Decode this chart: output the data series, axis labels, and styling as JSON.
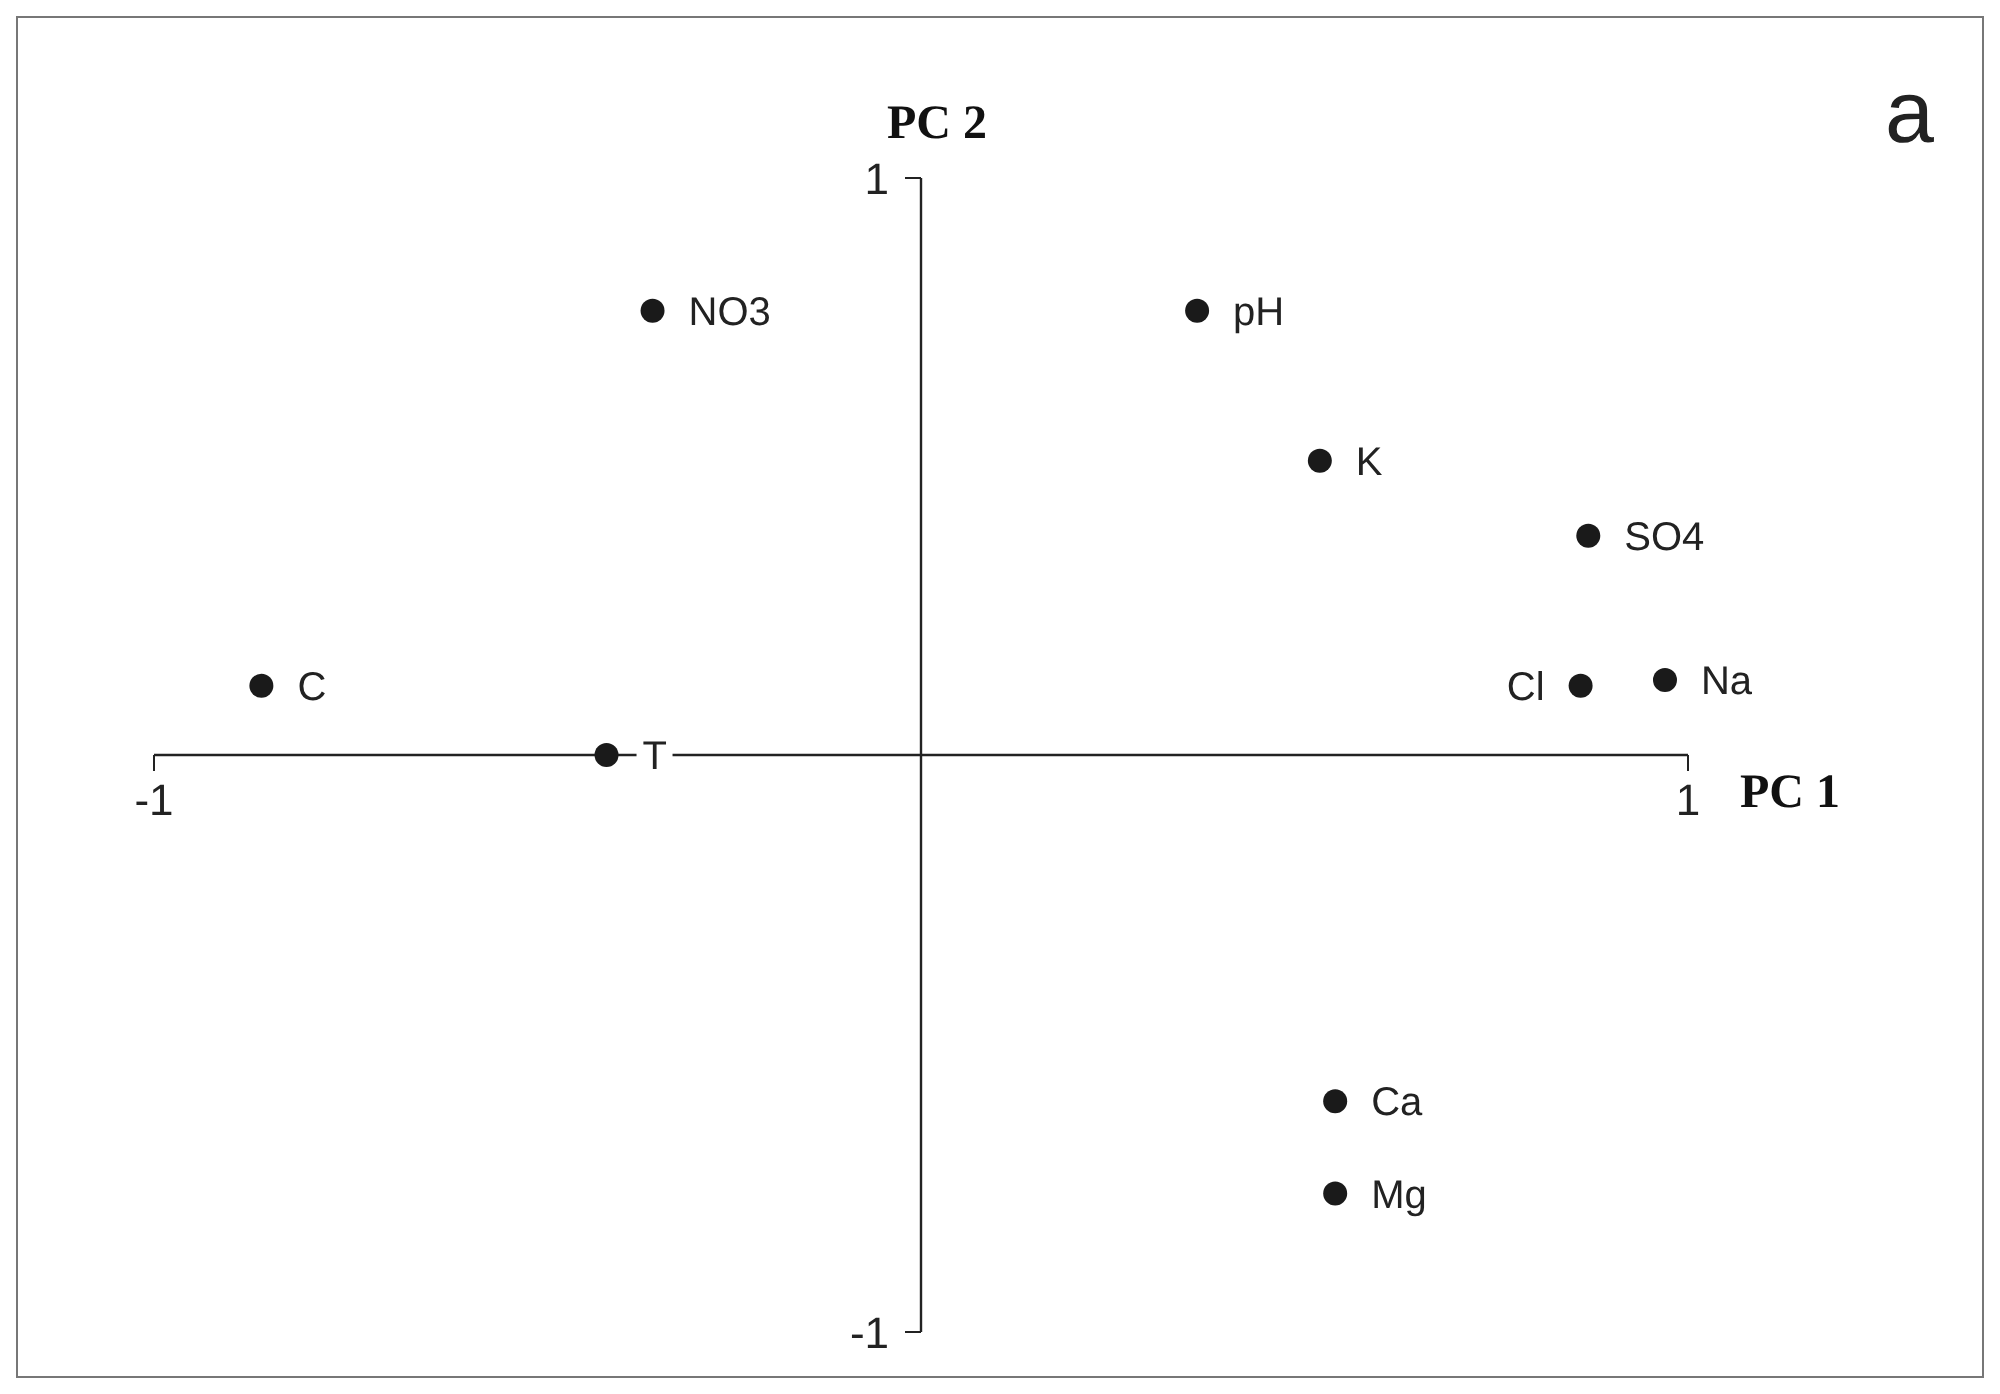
{
  "chart_data": {
    "type": "scatter",
    "title": "a",
    "xlabel": "PC 1",
    "ylabel": "PC 2",
    "x": [
      -0.35,
      0.36,
      0.52,
      0.87,
      0.86,
      0.97,
      -0.86,
      -0.41,
      0.54,
      0.54
    ],
    "values": [
      0.77,
      0.77,
      0.51,
      0.38,
      0.12,
      0.13,
      0.12,
      0.0,
      -0.6,
      -0.76
    ],
    "color": "#1a1a1a",
    "marker": "circle",
    "grid": false,
    "legend": false,
    "xlim": [
      -1,
      1
    ],
    "ylim": [
      -1,
      1
    ],
    "xticks": [
      -1,
      1
    ],
    "yticks": [
      -1,
      1
    ],
    "annotations": [
      {
        "text": "NO3",
        "x": -0.35,
        "y": 0.77
      },
      {
        "text": "pH",
        "x": 0.36,
        "y": 0.77
      },
      {
        "text": "K",
        "x": 0.52,
        "y": 0.51
      },
      {
        "text": "SO4",
        "x": 0.87,
        "y": 0.38
      },
      {
        "text": "Cl",
        "x": 0.86,
        "y": 0.12
      },
      {
        "text": "Na",
        "x": 0.97,
        "y": 0.13
      },
      {
        "text": "C",
        "x": -0.86,
        "y": 0.12
      },
      {
        "text": "T",
        "x": -0.41,
        "y": 0.0
      },
      {
        "text": "Ca",
        "x": 0.54,
        "y": -0.6
      },
      {
        "text": "Mg",
        "x": 0.54,
        "y": -0.76
      }
    ]
  }
}
